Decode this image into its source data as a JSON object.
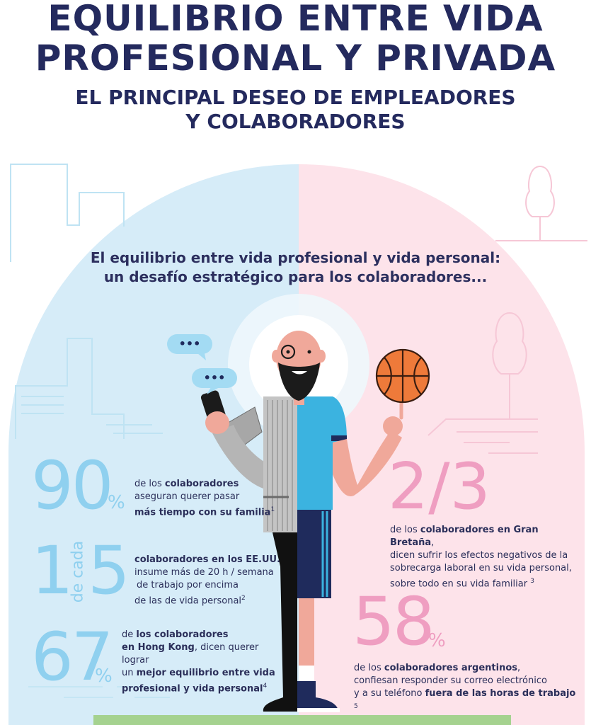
{
  "colors": {
    "navy": "#242a5e",
    "light_blue": "#d6ecf8",
    "light_pink": "#fde3ea",
    "blue_number": "#8fd0ef",
    "pink_number": "#ef9ec1",
    "ground": "#a5d28f"
  },
  "header": {
    "title_line1": "EQUILIBRIO ENTRE VIDA",
    "title_line2": "PROFESIONAL Y PRIVADA",
    "subtitle_line1": "EL PRINCIPAL DESEO DE EMPLEADORES",
    "subtitle_line2": "Y COLABORADORES"
  },
  "intro": {
    "line1": "El equilibrio entre vida profesional y vida personal:",
    "line2": "un desafío estratégico para los colaboradores..."
  },
  "bubbles": {
    "dots": "•••"
  },
  "stats": {
    "s90": {
      "number": "90",
      "unit": "%",
      "l1": "de los ",
      "l1b": "colaboradores",
      "l2": "aseguran querer pasar",
      "l3b": "más tiempo con su familia",
      "ref": "1"
    },
    "s1de5": {
      "n1": "1",
      "mid": "de cada",
      "n2": "5",
      "l1b": "colaboradores en los EE.UU.",
      "l2": "insume más de 20 h / semana",
      "l3": "de trabajo por encima",
      "l4": "de las de vida personal",
      "ref": "2"
    },
    "s67": {
      "number": "67",
      "unit": "%",
      "l1": "de ",
      "l1b": "los colaboradores",
      "l2b": "en Hong Kong",
      "l2": ", dicen querer lograr",
      "l3": "un ",
      "l3b": "mejor equilibrio entre vida",
      "l4b": "profesional y vida personal",
      "ref": "4"
    },
    "s23": {
      "number": "2/3",
      "l1": "de los ",
      "l1b": "colaboradores en Gran Bretaña",
      "l1e": ",",
      "l2": "dicen sufrir los efectos negativos de la",
      "l3": "sobrecarga laboral en su vida personal,",
      "l4": "sobre todo en su vida familiar",
      "ref": "3"
    },
    "s58": {
      "number": "58",
      "unit": "%",
      "l1": "de los ",
      "l1b": "colaboradores argentinos",
      "l1e": ",",
      "l2": "confiesan responder su correo electrónico",
      "l3": "y a su teléfono ",
      "l3b": "fuera de las horas de trabajo",
      "ref": "5"
    }
  }
}
